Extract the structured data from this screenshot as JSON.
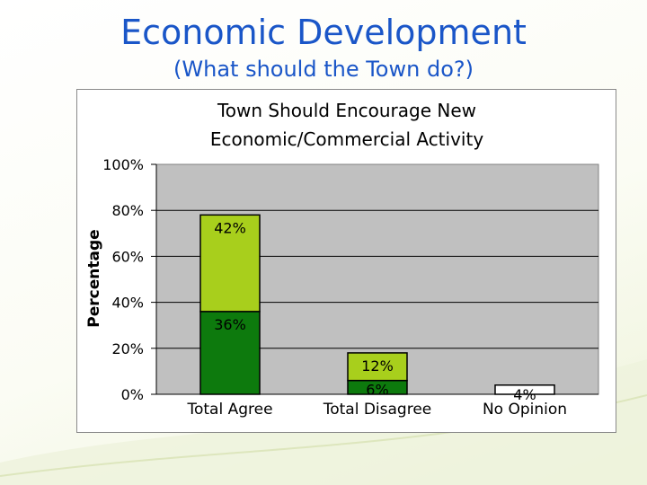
{
  "slide": {
    "title": "Economic Development",
    "subtitle": "(What should the Town do?)"
  },
  "colors": {
    "title_text": "#1a56c8",
    "plot_background": "#c0c0c0",
    "gridline": "#000000"
  },
  "chart_data": {
    "type": "bar",
    "stacked": true,
    "title_line1": "Town Should Encourage New",
    "title_line2": "Economic/Commercial Activity",
    "xlabel": "",
    "ylabel": "Percentage",
    "ylim": [
      0,
      100
    ],
    "yticks": [
      "0%",
      "20%",
      "40%",
      "60%",
      "80%",
      "100%"
    ],
    "yticks_values": [
      0,
      20,
      40,
      60,
      80,
      100
    ],
    "grid": true,
    "legend": "none",
    "categories": [
      "Total Agree",
      "Total Disagree",
      "No Opinion"
    ],
    "segments": [
      [
        {
          "value": 36,
          "label": "36%",
          "color": "#0d7a0d"
        },
        {
          "value": 42,
          "label": "42%",
          "color": "#a8cf1c"
        }
      ],
      [
        {
          "value": 6,
          "label": "6%",
          "color": "#0d7a0d"
        },
        {
          "value": 12,
          "label": "12%",
          "color": "#a8cf1c"
        }
      ],
      [
        {
          "value": 4,
          "label": "4%",
          "color": "#ffffff"
        }
      ]
    ]
  }
}
